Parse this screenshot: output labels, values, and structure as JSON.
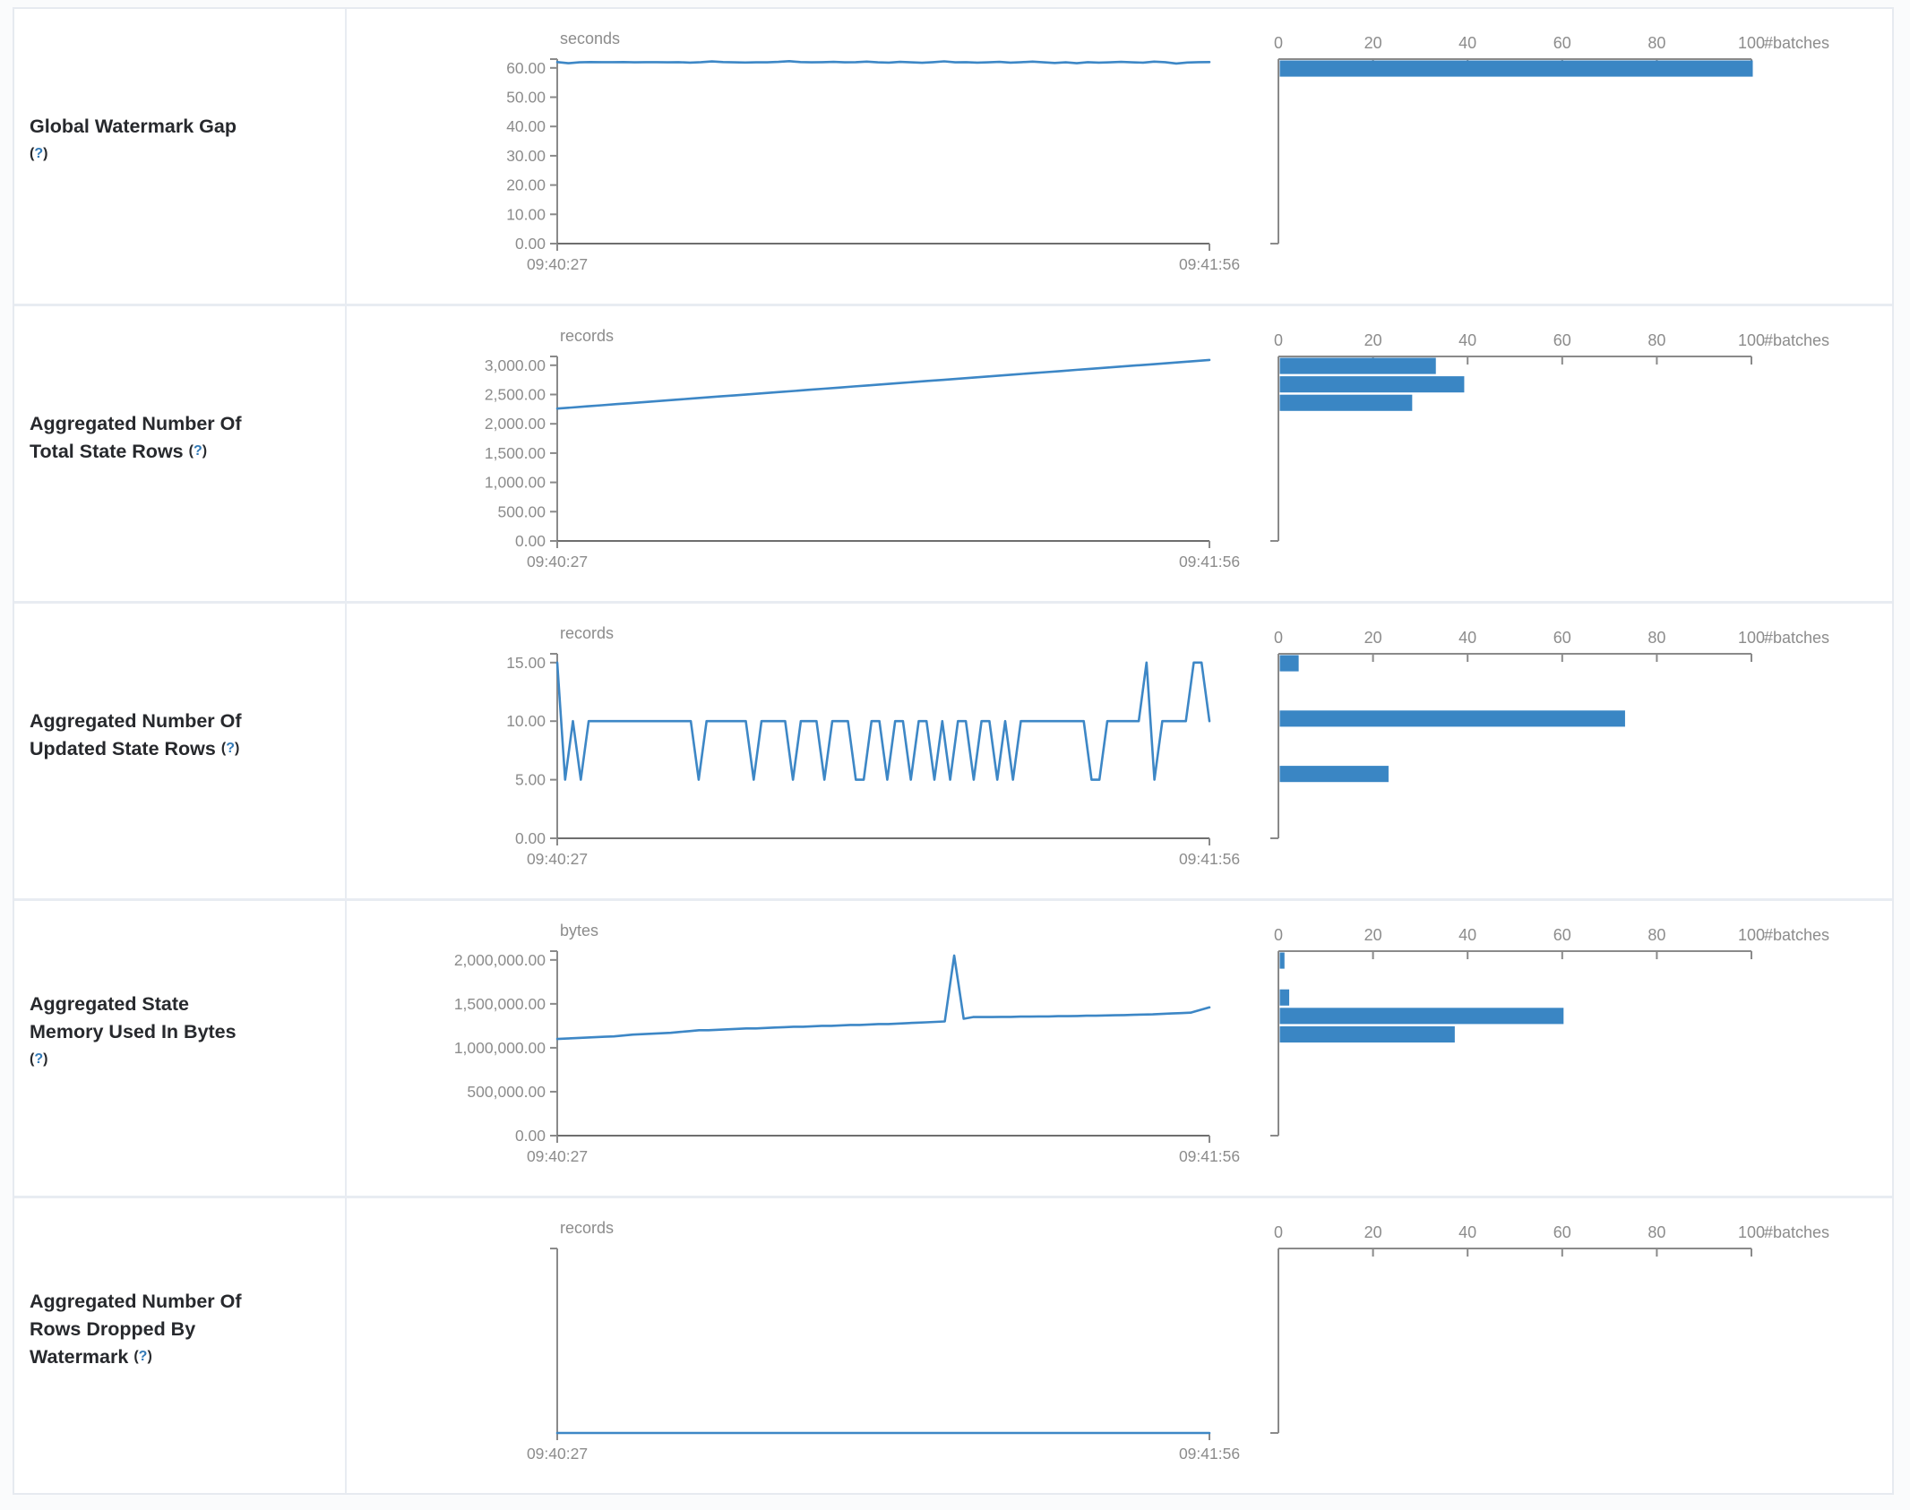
{
  "colors": {
    "line": "#3d87c6",
    "bar": "#3a86c4",
    "axis": "#8a8a8a",
    "x_axis_line": "#6e6e6e",
    "tick_text": "#8c8c8c",
    "label_text": "#27292d",
    "help_link": "#337ab7",
    "row_border": "#e8ecf2"
  },
  "help": {
    "open": "(",
    "q": "?",
    "close": ")"
  },
  "axis_shared": {
    "x_start_label": "09:40:27",
    "x_end_label": "09:41:56",
    "hist_tick_labels": [
      "0",
      "20",
      "40",
      "60",
      "80",
      "100"
    ],
    "hist_tick_values": [
      0,
      20,
      40,
      60,
      80,
      100
    ],
    "hist_axis_label": "#batches"
  },
  "rows": [
    {
      "label": "Global Watermark Gap (?)",
      "label_lines": [
        "Global Watermark Gap"
      ],
      "help_inline": false
    },
    {
      "label": "Aggregated Number Of Total State Rows (?)",
      "label_lines": [
        "Aggregated Number Of",
        "Total State Rows"
      ],
      "help_inline": true
    },
    {
      "label": "Aggregated Number Of Updated State Rows (?)",
      "label_lines": [
        "Aggregated Number Of",
        "Updated State Rows"
      ],
      "help_inline": true
    },
    {
      "label": "Aggregated State Memory Used In Bytes (?)",
      "label_lines": [
        "Aggregated State",
        "Memory Used In Bytes"
      ],
      "help_inline": false
    },
    {
      "label": "Aggregated Number Of Rows Dropped By Watermark (?)",
      "label_lines": [
        "Aggregated Number Of",
        "Rows Dropped By",
        "Watermark"
      ],
      "help_inline": true
    }
  ],
  "chart_data": [
    {
      "type": "line",
      "title": "Global Watermark Gap",
      "unit": "seconds",
      "x_start": "09:40:27",
      "x_end": "09:41:56",
      "y_max": 63,
      "y_ticks": [
        {
          "value": 0,
          "label": "0.00"
        },
        {
          "value": 10,
          "label": "10.00"
        },
        {
          "value": 20,
          "label": "20.00"
        },
        {
          "value": 30,
          "label": "30.00"
        },
        {
          "value": 40,
          "label": "40.00"
        },
        {
          "value": 50,
          "label": "50.00"
        },
        {
          "value": 60,
          "label": "60.00"
        }
      ],
      "series": [
        62.0,
        61.6,
        61.9,
        62.0,
        61.95,
        61.95,
        62.0,
        61.9,
        61.95,
        61.95,
        61.9,
        61.95,
        61.8,
        61.95,
        62.2,
        62.0,
        61.9,
        61.85,
        61.9,
        61.9,
        62.05,
        62.3,
        62.0,
        61.9,
        61.95,
        62.05,
        61.9,
        61.95,
        62.15,
        61.9,
        61.8,
        62.05,
        61.9,
        61.75,
        61.95,
        62.25,
        61.9,
        61.95,
        61.8,
        61.9,
        62.05,
        61.8,
        61.95,
        62.15,
        61.9,
        61.7,
        61.9,
        61.6,
        61.95,
        61.8,
        61.9,
        62.05,
        61.9,
        61.8,
        62.15,
        61.95,
        61.5,
        61.85,
        61.95,
        62.0
      ],
      "histogram": {
        "bin_count": 10,
        "bars": [
          {
            "bin": 0,
            "count": 100
          }
        ],
        "axis_max": 100
      }
    },
    {
      "type": "line",
      "title": "Aggregated Number Of Total State Rows",
      "unit": "records",
      "x_start": "09:40:27",
      "x_end": "09:41:56",
      "y_max": 3150,
      "y_ticks": [
        {
          "value": 0,
          "label": "0.00"
        },
        {
          "value": 500,
          "label": "500.00"
        },
        {
          "value": 1000,
          "label": "1,000.00"
        },
        {
          "value": 1500,
          "label": "1,500.00"
        },
        {
          "value": 2000,
          "label": "2,000.00"
        },
        {
          "value": 2500,
          "label": "2,500.00"
        },
        {
          "value": 3000,
          "label": "3,000.00"
        }
      ],
      "series": [
        2260,
        2279,
        2298,
        2317,
        2336,
        2354,
        2373,
        2392,
        2411,
        2430,
        2449,
        2468,
        2486,
        2505,
        2524,
        2543,
        2562,
        2581,
        2600,
        2618,
        2637,
        2656,
        2675,
        2694,
        2713,
        2732,
        2750,
        2769,
        2788,
        2807,
        2826,
        2845,
        2864,
        2882,
        2901,
        2920,
        2939,
        2958,
        2977,
        2996,
        3014,
        3033,
        3052,
        3071,
        3090
      ],
      "histogram": {
        "bin_count": 10,
        "bars": [
          {
            "bin": 0,
            "count": 33
          },
          {
            "bin": 1,
            "count": 39
          },
          {
            "bin": 2,
            "count": 28
          }
        ],
        "axis_max": 100
      }
    },
    {
      "type": "line",
      "title": "Aggregated Number Of Updated State Rows",
      "unit": "records",
      "x_start": "09:40:27",
      "x_end": "09:41:56",
      "y_max": 15.75,
      "y_ticks": [
        {
          "value": 0,
          "label": "0.00"
        },
        {
          "value": 5,
          "label": "5.00"
        },
        {
          "value": 10,
          "label": "10.00"
        },
        {
          "value": 15,
          "label": "15.00"
        }
      ],
      "series": [
        15,
        5,
        10,
        5,
        10,
        10,
        10,
        10,
        10,
        10,
        10,
        10,
        10,
        10,
        10,
        10,
        10,
        10,
        5,
        10,
        10,
        10,
        10,
        10,
        10,
        5,
        10,
        10,
        10,
        10,
        5,
        10,
        10,
        10,
        5,
        10,
        10,
        10,
        5,
        5,
        10,
        10,
        5,
        10,
        10,
        5,
        10,
        10,
        5,
        10,
        5,
        10,
        10,
        5,
        10,
        10,
        5,
        10,
        5,
        10,
        10,
        10,
        10,
        10,
        10,
        10,
        10,
        10,
        5,
        5,
        10,
        10,
        10,
        10,
        10,
        15,
        5,
        10,
        10,
        10,
        10,
        15,
        15,
        10
      ],
      "histogram": {
        "bin_count": 10,
        "bars": [
          {
            "bin": 0,
            "count": 4
          },
          {
            "bin": 3,
            "count": 73
          },
          {
            "bin": 6,
            "count": 23
          }
        ],
        "axis_max": 100
      }
    },
    {
      "type": "line",
      "title": "Aggregated State Memory Used In Bytes",
      "unit": "bytes",
      "x_start": "09:40:27",
      "x_end": "09:41:56",
      "y_max": 2100000,
      "y_ticks": [
        {
          "value": 0,
          "label": "0.00"
        },
        {
          "value": 500000,
          "label": "500,000.00"
        },
        {
          "value": 1000000,
          "label": "1,000,000.00"
        },
        {
          "value": 1500000,
          "label": "1,500,000.00"
        },
        {
          "value": 2000000,
          "label": "2,000,000.00"
        }
      ],
      "series": [
        1100000,
        1105000,
        1110000,
        1115000,
        1120000,
        1125000,
        1130000,
        1140000,
        1150000,
        1155000,
        1160000,
        1165000,
        1170000,
        1180000,
        1190000,
        1200000,
        1200000,
        1205000,
        1210000,
        1215000,
        1220000,
        1220000,
        1225000,
        1230000,
        1235000,
        1240000,
        1240000,
        1245000,
        1250000,
        1250000,
        1255000,
        1260000,
        1260000,
        1265000,
        1270000,
        1270000,
        1275000,
        1280000,
        1285000,
        1290000,
        1295000,
        1300000,
        2050000,
        1330000,
        1350000,
        1350000,
        1350000,
        1352000,
        1352000,
        1355000,
        1355000,
        1357000,
        1357000,
        1360000,
        1360000,
        1362000,
        1365000,
        1365000,
        1368000,
        1370000,
        1372000,
        1375000,
        1378000,
        1380000,
        1385000,
        1390000,
        1395000,
        1400000,
        1430000,
        1460000
      ],
      "histogram": {
        "bin_count": 10,
        "bars": [
          {
            "bin": 0,
            "count": 1
          },
          {
            "bin": 2,
            "count": 2
          },
          {
            "bin": 3,
            "count": 60
          },
          {
            "bin": 4,
            "count": 37
          }
        ],
        "axis_max": 100
      }
    },
    {
      "type": "line",
      "title": "Aggregated Number Of Rows Dropped By Watermark",
      "unit": "records",
      "x_start": "09:40:27",
      "x_end": "09:41:56",
      "y_max": 1,
      "y_ticks": [],
      "series": [
        0,
        0
      ],
      "histogram": {
        "bin_count": 10,
        "bars": [],
        "axis_max": 100
      }
    }
  ]
}
